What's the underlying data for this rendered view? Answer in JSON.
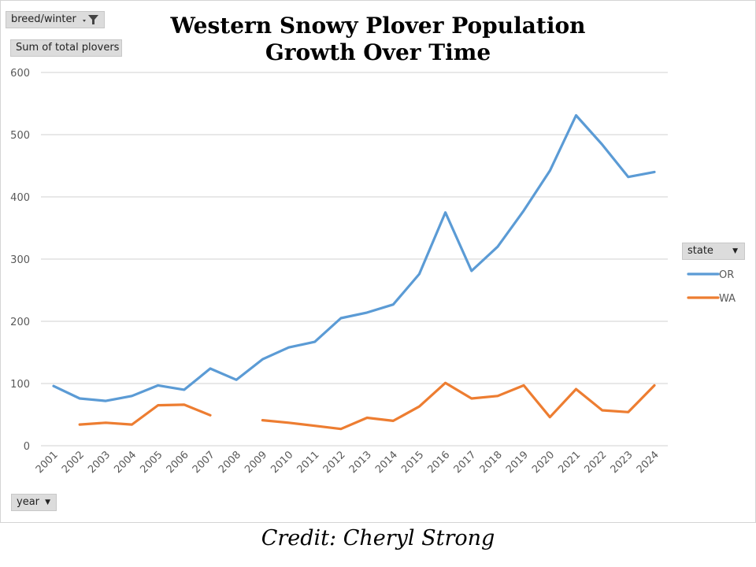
{
  "filters": {
    "breed_filter_label": "breed/winter",
    "values_label": "Sum of total plovers",
    "legend_filter_label": "state",
    "axis_filter_label": "year"
  },
  "credit": "Credit: Cheryl Strong",
  "colors": {
    "OR": "#5b9bd5",
    "WA": "#ed7d31",
    "grid": "#d9d9d9",
    "axis_text": "#595959"
  },
  "chart_data": {
    "type": "line",
    "title_line1": "Western Snowy Plover Population",
    "title_line2": "Growth Over Time",
    "xlabel": "",
    "ylabel": "",
    "ylim": [
      0,
      600
    ],
    "yticks": [
      0,
      100,
      200,
      300,
      400,
      500,
      600
    ],
    "grid": true,
    "legend_position": "right",
    "categories": [
      "2001",
      "2002",
      "2003",
      "2004",
      "2005",
      "2006",
      "2007",
      "2008",
      "2009",
      "2010",
      "2011",
      "2012",
      "2013",
      "2014",
      "2015",
      "2016",
      "2017",
      "2018",
      "2019",
      "2020",
      "2021",
      "2022",
      "2023",
      "2024"
    ],
    "series": [
      {
        "name": "OR",
        "values": [
          96,
          76,
          72,
          80,
          97,
          90,
          124,
          106,
          139,
          158,
          167,
          205,
          214,
          227,
          276,
          375,
          281,
          320,
          378,
          442,
          531,
          484,
          432,
          440
        ]
      },
      {
        "name": "WA",
        "values": [
          null,
          34,
          37,
          34,
          65,
          66,
          49,
          null,
          41,
          37,
          32,
          27,
          45,
          40,
          63,
          101,
          76,
          80,
          97,
          46,
          91,
          57,
          54,
          97
        ]
      }
    ]
  }
}
